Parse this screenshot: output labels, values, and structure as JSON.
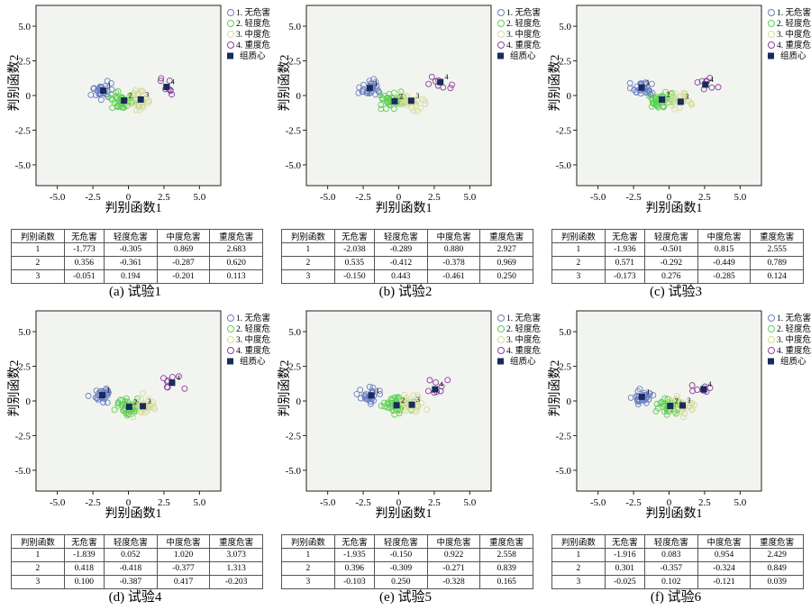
{
  "colors": {
    "g1": "#6b7fc4",
    "g2": "#5fcf55",
    "g3": "#d6dc9a",
    "g4": "#8d3fa0",
    "centroid": "#1a2a5c",
    "plot_bg": "#f2f4ef"
  },
  "axis": {
    "xlabel": "判别函数1",
    "ylabel": "判别函数2",
    "xticks": [
      "-5.0",
      "-2.5",
      "0",
      "2.5",
      "5.0"
    ],
    "yticks": [
      "5.0",
      "2.5",
      "0",
      "-2.5",
      "-5.0"
    ]
  },
  "legend": [
    "1. 无危害",
    "2. 轻度危害",
    "3. 中度危害",
    "4. 重度危害",
    "组质心"
  ],
  "table_header": [
    "判别函数",
    "无危害",
    "轻度危害",
    "中度危害",
    "重度危害"
  ],
  "chart_data": [
    {
      "type": "scatter",
      "caption": "(a) 试验1",
      "xlim": [
        -6.5,
        6.5
      ],
      "ylim": [
        -6.5,
        6.5
      ],
      "centroids": [
        [
          -1.773,
          0.356
        ],
        [
          -0.305,
          -0.361
        ],
        [
          0.869,
          -0.287
        ],
        [
          2.683,
          0.62
        ]
      ],
      "table": [
        [
          "1",
          "-1.773",
          "-0.305",
          "0.869",
          "2.683"
        ],
        [
          "2",
          "0.356",
          "-0.361",
          "-0.287",
          "0.620"
        ],
        [
          "3",
          "-0.051",
          "0.194",
          "-0.201",
          "0.113"
        ]
      ]
    },
    {
      "type": "scatter",
      "caption": "(b) 试验2",
      "xlim": [
        -6.5,
        6.5
      ],
      "ylim": [
        -6.5,
        6.5
      ],
      "centroids": [
        [
          -2.038,
          0.535
        ],
        [
          -0.289,
          -0.412
        ],
        [
          0.88,
          -0.378
        ],
        [
          2.927,
          0.969
        ]
      ],
      "table": [
        [
          "1",
          "-2.038",
          "-0.289",
          "0.880",
          "2.927"
        ],
        [
          "2",
          "0.535",
          "-0.412",
          "-0.378",
          "0.969"
        ],
        [
          "3",
          "-0.150",
          "0.443",
          "-0.461",
          "0.250"
        ]
      ]
    },
    {
      "type": "scatter",
      "caption": "(c) 试验3",
      "xlim": [
        -6.5,
        6.5
      ],
      "ylim": [
        -6.5,
        6.5
      ],
      "centroids": [
        [
          -1.936,
          0.571
        ],
        [
          -0.501,
          -0.292
        ],
        [
          0.815,
          -0.449
        ],
        [
          2.555,
          0.789
        ]
      ],
      "table": [
        [
          "1",
          "-1.936",
          "-0.501",
          "0.815",
          "2.555"
        ],
        [
          "2",
          "0.571",
          "-0.292",
          "-0.449",
          "0.789"
        ],
        [
          "3",
          "-0.173",
          "0.276",
          "-0.285",
          "0.124"
        ]
      ]
    },
    {
      "type": "scatter",
      "caption": "(d) 试验4",
      "xlim": [
        -6.5,
        6.5
      ],
      "ylim": [
        -6.5,
        6.5
      ],
      "centroids": [
        [
          -1.839,
          0.418
        ],
        [
          0.052,
          -0.418
        ],
        [
          1.02,
          -0.377
        ],
        [
          3.073,
          1.313
        ]
      ],
      "table": [
        [
          "1",
          "-1.839",
          "0.052",
          "1.020",
          "3.073"
        ],
        [
          "2",
          "0.418",
          "-0.418",
          "-0.377",
          "1.313"
        ],
        [
          "3",
          "0.100",
          "-0.387",
          "0.417",
          "-0.203"
        ]
      ]
    },
    {
      "type": "scatter",
      "caption": "(e) 试验5",
      "xlim": [
        -6.5,
        6.5
      ],
      "ylim": [
        -6.5,
        6.5
      ],
      "centroids": [
        [
          -1.935,
          0.396
        ],
        [
          -0.15,
          -0.309
        ],
        [
          0.922,
          -0.271
        ],
        [
          2.558,
          0.839
        ]
      ],
      "table": [
        [
          "1",
          "-1.935",
          "-0.150",
          "0.922",
          "2.558"
        ],
        [
          "2",
          "0.396",
          "-0.309",
          "-0.271",
          "0.839"
        ],
        [
          "3",
          "-0.103",
          "0.250",
          "-0.328",
          "0.165"
        ]
      ]
    },
    {
      "type": "scatter",
      "caption": "(f) 试验6",
      "xlim": [
        -6.5,
        6.5
      ],
      "ylim": [
        -6.5,
        6.5
      ],
      "centroids": [
        [
          -1.916,
          0.301
        ],
        [
          0.083,
          -0.357
        ],
        [
          0.954,
          -0.324
        ],
        [
          2.429,
          0.849
        ]
      ],
      "table": [
        [
          "1",
          "-1.916",
          "0.083",
          "0.954",
          "2.429"
        ],
        [
          "2",
          "0.301",
          "-0.357",
          "-0.324",
          "0.849"
        ],
        [
          "3",
          "-0.025",
          "0.102",
          "-0.121",
          "0.039"
        ]
      ]
    }
  ]
}
